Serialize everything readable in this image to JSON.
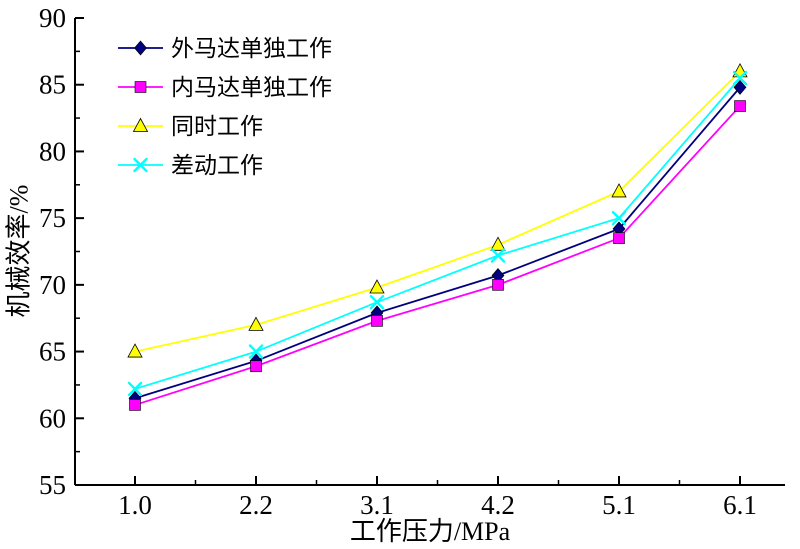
{
  "chart_data": {
    "type": "line",
    "title": "",
    "xlabel": "工作压力/MPa",
    "ylabel": "机械效率/%",
    "x_categories": [
      "1.0",
      "2.2",
      "3.1",
      "4.2",
      "5.1",
      "6.1"
    ],
    "ylim": [
      55,
      90
    ],
    "yticks": [
      55,
      60,
      65,
      70,
      75,
      80,
      85,
      90
    ],
    "grid": false,
    "legend_position": "top-left",
    "axis_color": "#000000",
    "series": [
      {
        "name": "外马达单独工作",
        "marker": "diamond",
        "color": "#00007f",
        "values": [
          61.5,
          64.3,
          67.9,
          70.7,
          74.2,
          84.8
        ]
      },
      {
        "name": "内马达单独工作",
        "marker": "square",
        "color": "#ff00ff",
        "values": [
          61.0,
          63.9,
          67.3,
          70.0,
          73.5,
          83.4
        ]
      },
      {
        "name": "同时工作",
        "marker": "triangle",
        "color": "#ffff00",
        "values": [
          65.0,
          67.0,
          69.8,
          73.0,
          77.0,
          86.0
        ]
      },
      {
        "name": "差动工作",
        "marker": "x",
        "color": "#00ffff",
        "values": [
          62.2,
          65.0,
          68.7,
          72.2,
          75.0,
          85.5
        ]
      }
    ]
  }
}
